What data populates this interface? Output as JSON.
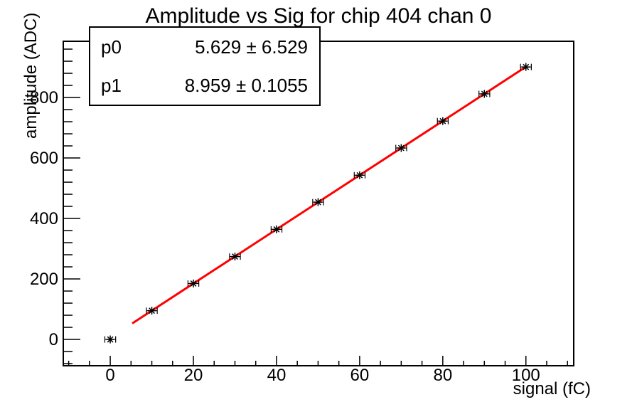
{
  "chart_data": {
    "type": "scatter",
    "title": "Amplitude vs Sig for chip 404 chan 0",
    "xlabel": "signal (fC)",
    "ylabel": "amplitude (ADC)",
    "xlim": [
      -11.3,
      111.5
    ],
    "ylim": [
      -87,
      986
    ],
    "x_major_ticks": [
      0,
      20,
      40,
      60,
      80,
      100
    ],
    "x_major_step": 20,
    "x_minor_step": 5,
    "y_major_ticks": [
      0,
      200,
      400,
      600,
      800
    ],
    "y_major_step": 200,
    "y_minor_step": 40,
    "grid": false,
    "legend_position": "none",
    "points": {
      "x": [
        0,
        10,
        20,
        30,
        40,
        50,
        60,
        70,
        80,
        90,
        100
      ],
      "y": [
        0,
        95,
        185,
        274,
        364,
        454,
        543,
        633,
        722,
        812,
        901
      ],
      "xerr": 1.3
    },
    "fit": {
      "p0": 5.629,
      "p1": 8.959,
      "x_start": 5.3,
      "x_end": 100
    },
    "marker": {
      "style": "star",
      "color": "#000000"
    }
  },
  "stats_box": {
    "rows": [
      {
        "name": "p0",
        "value": "5.629 ± 6.529"
      },
      {
        "name": "p1",
        "value": "8.959 ± 0.1055"
      }
    ]
  },
  "colors": {
    "background": "#ffffff",
    "frame": "#000000",
    "text": "#000000",
    "fit_line": "#ff0000",
    "marker": "#000000"
  }
}
